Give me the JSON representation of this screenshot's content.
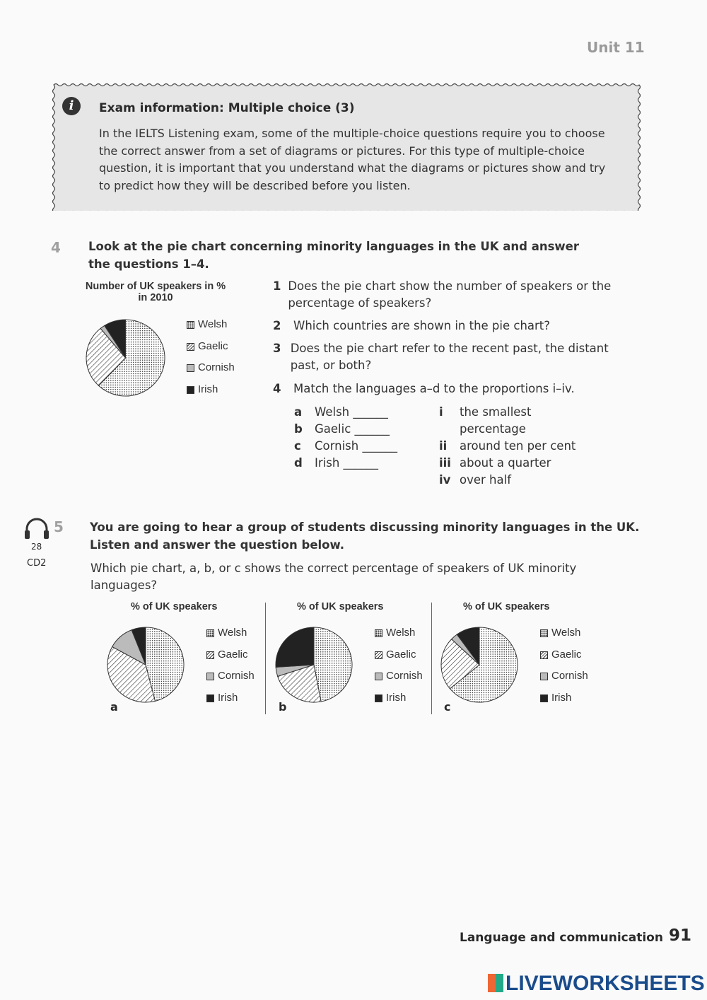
{
  "header": {
    "unit": "Unit 11"
  },
  "info_box": {
    "icon": "info-icon",
    "icon_glyph": "i",
    "title": "Exam information: Multiple choice (3)",
    "body": "In the IELTS Listening exam, some of the multiple-choice questions require you to choose the correct answer from a set of diagrams or pictures. For this type of multiple-choice question, it is important that you understand what the diagrams or pictures show and try to predict how they will be described before you listen."
  },
  "ex4": {
    "number": "4",
    "instruction": "Look at the pie chart concerning minority languages in the UK and answer the questions 1–4.",
    "questions": [
      {
        "n": "1",
        "text": "Does the pie chart show the number of speakers or the percentage of speakers?"
      },
      {
        "n": "2",
        "text": "Which countries are shown in the pie chart?"
      },
      {
        "n": "3",
        "text": "Does the pie chart refer to the recent past, the distant past, or both?"
      },
      {
        "n": "4",
        "text": "Match the languages a–d to the proportions i–iv."
      }
    ],
    "languages": [
      {
        "l": "a",
        "t": "Welsh ______"
      },
      {
        "l": "b",
        "t": "Gaelic ______"
      },
      {
        "l": "c",
        "t": "Cornish ______"
      },
      {
        "l": "d",
        "t": "Irish ______"
      }
    ],
    "proportions": [
      {
        "l": "i",
        "t": "the smallest percentage"
      },
      {
        "l": "ii",
        "t": "around ten per cent"
      },
      {
        "l": "iii",
        "t": "about a quarter"
      },
      {
        "l": "iv",
        "t": "over half"
      }
    ]
  },
  "ex5": {
    "number": "5",
    "audio_icon": "headphones-icon",
    "track": "28",
    "cd": "CD2",
    "instruction": "You are going to hear a group of students discussing minority languages in the UK. Listen and answer the question below.",
    "question": "Which pie chart, a, b, or c shows the correct percentage of speakers of UK minority languages?"
  },
  "colors": {
    "Welsh": "dotted",
    "Gaelic": "hatched",
    "Cornish": "#bbbbbb",
    "Irish": "#222222"
  },
  "chart_data": [
    {
      "type": "pie",
      "title": "Number of UK speakers in % in 2010",
      "categories": [
        "Welsh",
        "Gaelic",
        "Cornish",
        "Irish"
      ],
      "values": [
        62,
        27,
        2,
        9
      ],
      "legend": "right"
    },
    {
      "type": "pie",
      "title": "% of UK speakers",
      "label": "a",
      "categories": [
        "Welsh",
        "Gaelic",
        "Cornish",
        "Irish"
      ],
      "values": [
        46,
        37,
        11,
        6
      ],
      "legend": "right"
    },
    {
      "type": "pie",
      "title": "% of UK speakers",
      "label": "b",
      "categories": [
        "Welsh",
        "Gaelic",
        "Cornish",
        "Irish"
      ],
      "values": [
        47,
        23,
        4,
        26
      ],
      "legend": "right"
    },
    {
      "type": "pie",
      "title": "% of UK speakers",
      "label": "c",
      "categories": [
        "Welsh",
        "Gaelic",
        "Cornish",
        "Irish"
      ],
      "values": [
        64,
        23,
        3,
        10
      ],
      "legend": "right"
    }
  ],
  "footer": {
    "section": "Language and communication",
    "page": "91",
    "brand": "LIVEWORKSHEETS"
  }
}
